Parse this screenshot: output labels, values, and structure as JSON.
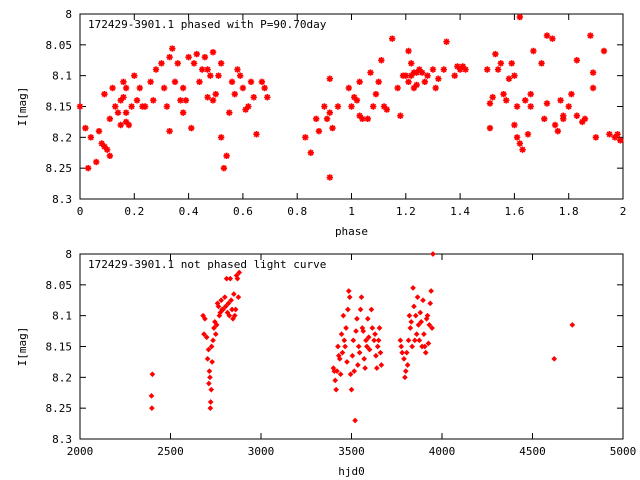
{
  "chart_data": [
    {
      "type": "scatter",
      "title": "172429-3901.1 phased with P=90.70day",
      "xlabel": "phase",
      "ylabel": "I[mag]",
      "xlim": [
        0,
        2
      ],
      "ylim": [
        8.3,
        8.0
      ],
      "y_inverted": true,
      "grid": false,
      "marker": "star",
      "color": "#ff0000",
      "x_ticks": [
        "0",
        "0.2",
        "0.4",
        "0.6",
        "0.8",
        "1",
        "1.2",
        "1.4",
        "1.6",
        "1.8",
        "2"
      ],
      "y_ticks": [
        "8",
        "8.05",
        "8.1",
        "8.15",
        "8.2",
        "8.25",
        "8.3"
      ],
      "points": [
        [
          0.0,
          8.15
        ],
        [
          0.02,
          8.185
        ],
        [
          0.03,
          8.25
        ],
        [
          0.04,
          8.2
        ],
        [
          0.06,
          8.24
        ],
        [
          0.07,
          8.19
        ],
        [
          0.08,
          8.21
        ],
        [
          0.09,
          8.13
        ],
        [
          0.09,
          8.215
        ],
        [
          0.1,
          8.22
        ],
        [
          0.11,
          8.17
        ],
        [
          0.11,
          8.23
        ],
        [
          0.12,
          8.12
        ],
        [
          0.13,
          8.15
        ],
        [
          0.14,
          8.16
        ],
        [
          0.15,
          8.14
        ],
        [
          0.15,
          8.18
        ],
        [
          0.16,
          8.11
        ],
        [
          0.16,
          8.135
        ],
        [
          0.17,
          8.16
        ],
        [
          0.17,
          8.12
        ],
        [
          0.17,
          8.175
        ],
        [
          0.18,
          8.18
        ],
        [
          0.19,
          8.15
        ],
        [
          0.2,
          8.1
        ],
        [
          0.21,
          8.14
        ],
        [
          0.22,
          8.12
        ],
        [
          0.23,
          8.15
        ],
        [
          0.24,
          8.15
        ],
        [
          0.26,
          8.11
        ],
        [
          0.27,
          8.14
        ],
        [
          0.28,
          8.09
        ],
        [
          0.3,
          8.08
        ],
        [
          0.31,
          8.12
        ],
        [
          0.32,
          8.15
        ],
        [
          0.33,
          8.19
        ],
        [
          0.33,
          8.07
        ],
        [
          0.34,
          8.056
        ],
        [
          0.35,
          8.11
        ],
        [
          0.36,
          8.08
        ],
        [
          0.37,
          8.14
        ],
        [
          0.38,
          8.16
        ],
        [
          0.38,
          8.12
        ],
        [
          0.39,
          8.14
        ],
        [
          0.4,
          8.07
        ],
        [
          0.41,
          8.185
        ],
        [
          0.42,
          8.08
        ],
        [
          0.43,
          8.065
        ],
        [
          0.44,
          8.11
        ],
        [
          0.45,
          8.09
        ],
        [
          0.46,
          8.07
        ],
        [
          0.47,
          8.09
        ],
        [
          0.47,
          8.135
        ],
        [
          0.48,
          8.1
        ],
        [
          0.49,
          8.14
        ],
        [
          0.49,
          8.062
        ],
        [
          0.5,
          8.13
        ],
        [
          0.51,
          8.1
        ],
        [
          0.52,
          8.08
        ],
        [
          0.52,
          8.2
        ],
        [
          0.53,
          8.25
        ],
        [
          0.54,
          8.23
        ],
        [
          0.55,
          8.16
        ],
        [
          0.56,
          8.11
        ],
        [
          0.57,
          8.13
        ],
        [
          0.58,
          8.09
        ],
        [
          0.59,
          8.1
        ],
        [
          0.6,
          8.12
        ],
        [
          0.61,
          8.155
        ],
        [
          0.62,
          8.15
        ],
        [
          0.63,
          8.11
        ],
        [
          0.64,
          8.135
        ],
        [
          0.65,
          8.195
        ],
        [
          0.67,
          8.11
        ],
        [
          0.68,
          8.12
        ],
        [
          0.69,
          8.135
        ],
        [
          0.83,
          8.2
        ],
        [
          0.85,
          8.225
        ],
        [
          0.87,
          8.17
        ],
        [
          0.88,
          8.19
        ],
        [
          0.9,
          8.15
        ],
        [
          0.91,
          8.17
        ],
        [
          0.92,
          8.105
        ],
        [
          0.92,
          8.16
        ],
        [
          0.92,
          8.265
        ],
        [
          0.93,
          8.185
        ],
        [
          0.95,
          8.15
        ],
        [
          0.99,
          8.12
        ],
        [
          1.0,
          8.15
        ],
        [
          1.01,
          8.135
        ],
        [
          1.02,
          8.14
        ],
        [
          1.03,
          8.11
        ],
        [
          1.03,
          8.165
        ],
        [
          1.04,
          8.17
        ],
        [
          1.06,
          8.17
        ],
        [
          1.07,
          8.095
        ],
        [
          1.08,
          8.15
        ],
        [
          1.09,
          8.13
        ],
        [
          1.1,
          8.11
        ],
        [
          1.11,
          8.075
        ],
        [
          1.12,
          8.15
        ],
        [
          1.13,
          8.155
        ],
        [
          1.15,
          8.04
        ],
        [
          1.17,
          8.12
        ],
        [
          1.18,
          8.165
        ],
        [
          1.19,
          8.1
        ],
        [
          1.2,
          8.1
        ],
        [
          1.21,
          8.11
        ],
        [
          1.21,
          8.06
        ],
        [
          1.22,
          8.08
        ],
        [
          1.22,
          8.1
        ],
        [
          1.23,
          8.12
        ],
        [
          1.23,
          8.095
        ],
        [
          1.24,
          8.095
        ],
        [
          1.24,
          8.115
        ],
        [
          1.25,
          8.09
        ],
        [
          1.26,
          8.095
        ],
        [
          1.27,
          8.11
        ],
        [
          1.28,
          8.1
        ],
        [
          1.3,
          8.09
        ],
        [
          1.31,
          8.12
        ],
        [
          1.32,
          8.105
        ],
        [
          1.34,
          8.09
        ],
        [
          1.35,
          8.045
        ],
        [
          1.38,
          8.1
        ],
        [
          1.39,
          8.085
        ],
        [
          1.4,
          8.09
        ],
        [
          1.41,
          8.085
        ],
        [
          1.42,
          8.09
        ],
        [
          1.5,
          8.09
        ],
        [
          1.51,
          8.145
        ],
        [
          1.51,
          8.185
        ],
        [
          1.52,
          8.135
        ],
        [
          1.53,
          8.065
        ],
        [
          1.54,
          8.09
        ],
        [
          1.55,
          8.08
        ],
        [
          1.56,
          8.13
        ],
        [
          1.57,
          8.14
        ],
        [
          1.58,
          8.105
        ],
        [
          1.59,
          8.08
        ],
        [
          1.6,
          8.1
        ],
        [
          1.6,
          8.18
        ],
        [
          1.61,
          8.2
        ],
        [
          1.61,
          8.15
        ],
        [
          1.62,
          8.005
        ],
        [
          1.62,
          8.21
        ],
        [
          1.63,
          8.22
        ],
        [
          1.64,
          8.14
        ],
        [
          1.65,
          8.195
        ],
        [
          1.66,
          8.15
        ],
        [
          1.66,
          8.13
        ],
        [
          1.67,
          8.06
        ],
        [
          1.7,
          8.08
        ],
        [
          1.71,
          8.17
        ],
        [
          1.72,
          8.145
        ],
        [
          1.72,
          8.035
        ],
        [
          1.74,
          8.04
        ],
        [
          1.75,
          8.18
        ],
        [
          1.76,
          8.19
        ],
        [
          1.77,
          8.14
        ],
        [
          1.78,
          8.165
        ],
        [
          1.78,
          8.17
        ],
        [
          1.8,
          8.15
        ],
        [
          1.81,
          8.13
        ],
        [
          1.83,
          8.075
        ],
        [
          1.83,
          8.165
        ],
        [
          1.85,
          8.175
        ],
        [
          1.86,
          8.17
        ],
        [
          1.88,
          8.035
        ],
        [
          1.89,
          8.095
        ],
        [
          1.89,
          8.12
        ],
        [
          1.9,
          8.2
        ],
        [
          1.93,
          8.06
        ],
        [
          1.95,
          8.195
        ],
        [
          1.97,
          8.2
        ],
        [
          1.98,
          8.195
        ],
        [
          1.99,
          8.205
        ]
      ]
    },
    {
      "type": "scatter",
      "title": "172429-3901.1 not phased light curve",
      "xlabel": "hjd0",
      "ylabel": "I[mag]",
      "xlim": [
        2000,
        5000
      ],
      "ylim": [
        8.3,
        8.0
      ],
      "y_inverted": true,
      "grid": false,
      "marker": "diamond",
      "color": "#ff0000",
      "x_ticks": [
        "2000",
        "2500",
        "3000",
        "3500",
        "4000",
        "4500",
        "5000"
      ],
      "y_ticks": [
        "8",
        "8.05",
        "8.1",
        "8.15",
        "8.2",
        "8.25",
        "8.3"
      ],
      "points": [
        [
          2395,
          8.23
        ],
        [
          2397,
          8.25
        ],
        [
          2400,
          8.195
        ],
        [
          2680,
          8.1
        ],
        [
          2685,
          8.13
        ],
        [
          2690,
          8.105
        ],
        [
          2700,
          8.135
        ],
        [
          2705,
          8.17
        ],
        [
          2710,
          8.155
        ],
        [
          2712,
          8.21
        ],
        [
          2715,
          8.19
        ],
        [
          2718,
          8.2
        ],
        [
          2720,
          8.25
        ],
        [
          2722,
          8.24
        ],
        [
          2725,
          8.22
        ],
        [
          2727,
          8.15
        ],
        [
          2730,
          8.175
        ],
        [
          2735,
          8.14
        ],
        [
          2740,
          8.12
        ],
        [
          2745,
          8.11
        ],
        [
          2750,
          8.13
        ],
        [
          2755,
          8.115
        ],
        [
          2760,
          8.08
        ],
        [
          2765,
          8.085
        ],
        [
          2770,
          8.1
        ],
        [
          2775,
          8.095
        ],
        [
          2780,
          8.075
        ],
        [
          2785,
          8.09
        ],
        [
          2790,
          8.09
        ],
        [
          2800,
          8.07
        ],
        [
          2805,
          8.085
        ],
        [
          2810,
          8.04
        ],
        [
          2815,
          8.095
        ],
        [
          2820,
          8.08
        ],
        [
          2825,
          8.1
        ],
        [
          2830,
          8.04
        ],
        [
          2835,
          8.075
        ],
        [
          2840,
          8.09
        ],
        [
          2845,
          8.105
        ],
        [
          2850,
          8.065
        ],
        [
          2855,
          8.1
        ],
        [
          2860,
          8.09
        ],
        [
          2865,
          8.035
        ],
        [
          2870,
          8.04
        ],
        [
          2875,
          8.07
        ],
        [
          2880,
          8.03
        ],
        [
          3400,
          8.185
        ],
        [
          3405,
          8.19
        ],
        [
          3410,
          8.205
        ],
        [
          3415,
          8.22
        ],
        [
          3420,
          8.19
        ],
        [
          3425,
          8.15
        ],
        [
          3430,
          8.165
        ],
        [
          3435,
          8.17
        ],
        [
          3440,
          8.195
        ],
        [
          3445,
          8.13
        ],
        [
          3450,
          8.16
        ],
        [
          3455,
          8.1
        ],
        [
          3460,
          8.14
        ],
        [
          3465,
          8.15
        ],
        [
          3470,
          8.12
        ],
        [
          3475,
          8.175
        ],
        [
          3480,
          8.09
        ],
        [
          3485,
          8.06
        ],
        [
          3490,
          8.07
        ],
        [
          3495,
          8.195
        ],
        [
          3500,
          8.22
        ],
        [
          3505,
          8.165
        ],
        [
          3510,
          8.14
        ],
        [
          3515,
          8.19
        ],
        [
          3520,
          8.27
        ],
        [
          3525,
          8.125
        ],
        [
          3530,
          8.105
        ],
        [
          3535,
          8.18
        ],
        [
          3540,
          8.15
        ],
        [
          3545,
          8.16
        ],
        [
          3550,
          8.09
        ],
        [
          3555,
          8.07
        ],
        [
          3560,
          8.12
        ],
        [
          3565,
          8.125
        ],
        [
          3570,
          8.17
        ],
        [
          3575,
          8.185
        ],
        [
          3580,
          8.14
        ],
        [
          3585,
          8.15
        ],
        [
          3590,
          8.105
        ],
        [
          3595,
          8.135
        ],
        [
          3600,
          8.155
        ],
        [
          3610,
          8.09
        ],
        [
          3615,
          8.12
        ],
        [
          3625,
          8.14
        ],
        [
          3630,
          8.13
        ],
        [
          3635,
          8.165
        ],
        [
          3640,
          8.185
        ],
        [
          3645,
          8.15
        ],
        [
          3650,
          8.14
        ],
        [
          3655,
          8.12
        ],
        [
          3660,
          8.16
        ],
        [
          3665,
          8.18
        ],
        [
          3770,
          8.14
        ],
        [
          3775,
          8.15
        ],
        [
          3780,
          8.16
        ],
        [
          3790,
          8.17
        ],
        [
          3795,
          8.2
        ],
        [
          3800,
          8.19
        ],
        [
          3805,
          8.16
        ],
        [
          3810,
          8.18
        ],
        [
          3815,
          8.14
        ],
        [
          3820,
          8.1
        ],
        [
          3825,
          8.12
        ],
        [
          3830,
          8.11
        ],
        [
          3835,
          8.15
        ],
        [
          3840,
          8.055
        ],
        [
          3845,
          8.085
        ],
        [
          3850,
          8.14
        ],
        [
          3855,
          8.1
        ],
        [
          3860,
          8.13
        ],
        [
          3865,
          8.07
        ],
        [
          3870,
          8.115
        ],
        [
          3875,
          8.14
        ],
        [
          3880,
          8.095
        ],
        [
          3885,
          8.11
        ],
        [
          3890,
          8.15
        ],
        [
          3895,
          8.075
        ],
        [
          3900,
          8.13
        ],
        [
          3905,
          8.15
        ],
        [
          3910,
          8.16
        ],
        [
          3915,
          8.105
        ],
        [
          3920,
          8.1
        ],
        [
          3925,
          8.145
        ],
        [
          3930,
          8.115
        ],
        [
          3935,
          8.08
        ],
        [
          3940,
          8.06
        ],
        [
          3945,
          8.12
        ],
        [
          3950,
          8.0
        ],
        [
          4620,
          8.17
        ],
        [
          4720,
          8.115
        ]
      ]
    }
  ]
}
